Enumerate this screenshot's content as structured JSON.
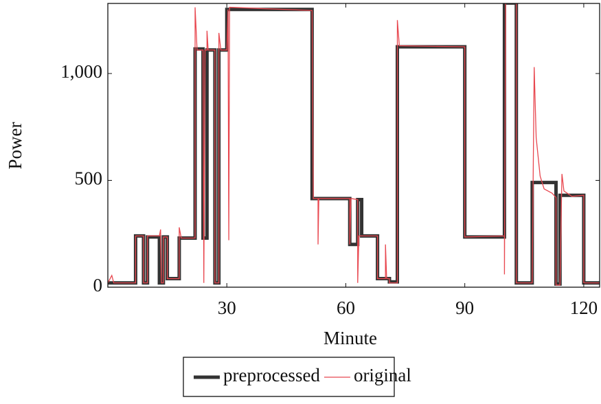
{
  "chart_data": {
    "type": "line",
    "x_label": "Minute",
    "y_label": "Power",
    "xlim": [
      0,
      124
    ],
    "ylim": [
      0,
      1328
    ],
    "xticks": [
      30,
      60,
      90,
      120
    ],
    "yticks": [
      0,
      500,
      {
        "value": 1000,
        "label": "1,000"
      }
    ],
    "legend": "bottom",
    "series": [
      {
        "name": "preprocessed",
        "color": "#333333",
        "x": [
          0,
          7,
          7,
          9,
          9,
          10,
          10,
          13,
          13,
          14,
          14,
          15,
          15,
          18,
          18,
          22,
          22,
          24,
          24,
          25,
          25,
          27,
          27,
          28,
          28,
          30,
          30,
          51.5,
          51.5,
          61,
          61,
          63,
          63,
          64,
          64,
          68,
          68,
          71,
          71,
          73,
          73,
          90,
          90,
          100,
          100,
          103,
          103,
          107,
          107,
          113,
          113,
          114,
          114,
          120,
          120,
          124
        ],
        "values": [
          20,
          20,
          240,
          240,
          20,
          20,
          235,
          235,
          20,
          20,
          235,
          235,
          40,
          40,
          230,
          230,
          1115,
          1115,
          230,
          230,
          1110,
          1110,
          20,
          20,
          1110,
          1110,
          1300,
          1300,
          415,
          415,
          200,
          200,
          410,
          410,
          240,
          240,
          40,
          40,
          25,
          25,
          1125,
          1125,
          235,
          235,
          1330,
          1330,
          20,
          20,
          490,
          490,
          15,
          15,
          430,
          430,
          20,
          20
        ]
      },
      {
        "name": "original",
        "color": "#e8474f",
        "x": [
          0,
          1,
          1.5,
          7,
          7,
          9,
          9,
          10,
          10,
          13,
          13.3,
          13.5,
          14,
          14,
          15,
          15,
          18,
          18,
          18.5,
          22,
          22,
          22.5,
          24,
          24.2,
          24.5,
          25,
          25,
          25.3,
          27,
          27,
          28,
          28,
          28.5,
          30,
          30.3,
          30.5,
          30.7,
          51.5,
          51.8,
          53,
          53,
          53.2,
          61,
          61,
          61.3,
          63,
          63,
          63.3,
          68,
          68,
          70,
          70,
          70.3,
          71,
          71,
          73,
          73,
          73.5,
          90,
          90,
          100,
          100,
          100.3,
          103,
          103,
          107,
          107.5,
          108,
          109,
          110,
          112,
          113,
          113,
          114,
          114.5,
          115,
          117,
          120,
          120,
          124
        ],
        "values": [
          20,
          55,
          20,
          20,
          240,
          240,
          20,
          20,
          240,
          240,
          270,
          20,
          20,
          235,
          235,
          40,
          40,
          280,
          230,
          230,
          1310,
          1110,
          1110,
          20,
          1110,
          1110,
          1200,
          1110,
          1110,
          20,
          20,
          1190,
          1110,
          1110,
          1300,
          220,
          1310,
          1295,
          415,
          415,
          200,
          415,
          415,
          200,
          415,
          410,
          20,
          240,
          240,
          40,
          40,
          200,
          40,
          40,
          20,
          20,
          1250,
          1130,
          1125,
          235,
          240,
          60,
          1330,
          1330,
          20,
          20,
          1030,
          700,
          520,
          460,
          440,
          420,
          10,
          10,
          530,
          450,
          425,
          430,
          20,
          20
        ]
      }
    ]
  }
}
